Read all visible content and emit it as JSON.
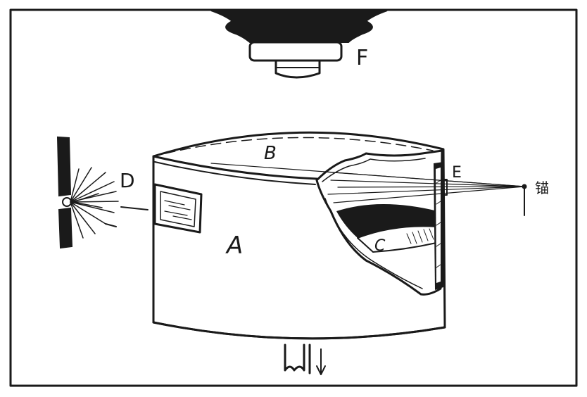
{
  "labels": {
    "cylinder": "A",
    "film": "B",
    "crystal": "C",
    "source": "D",
    "slit": "E",
    "lens": "F",
    "ray_target": "锚"
  },
  "colors": {
    "ink": "#1a1a1a",
    "paper": "#ffffff"
  }
}
